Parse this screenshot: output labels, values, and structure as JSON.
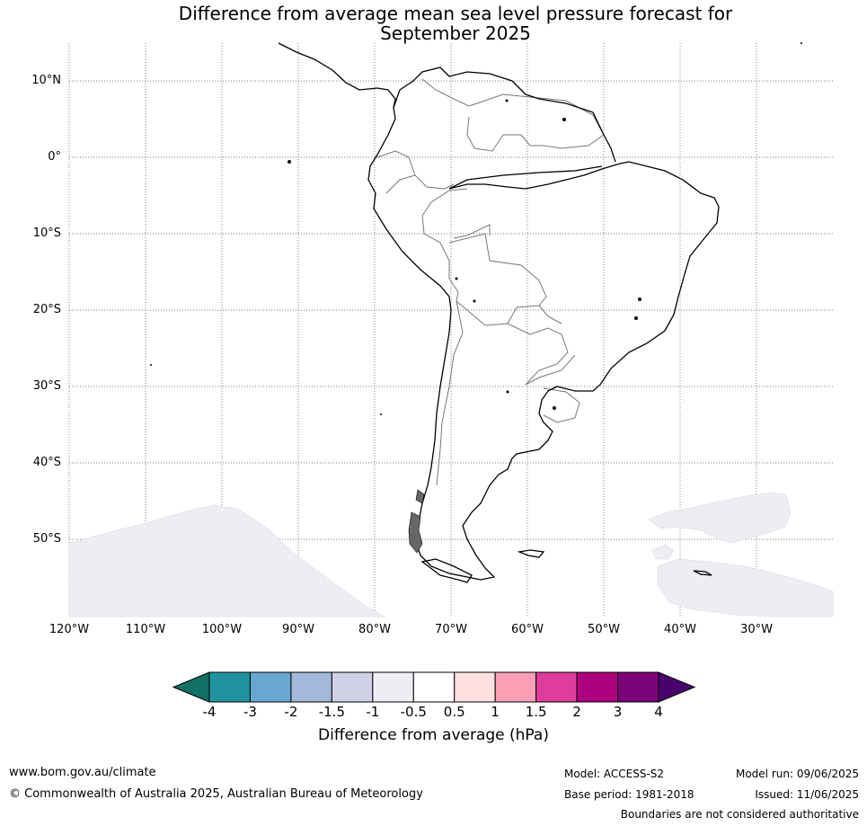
{
  "title_line1": "Difference from average mean sea level pressure forecast for",
  "title_line2": "September 2025",
  "lat_labels": [
    "10°N",
    "0°",
    "10°S",
    "20°S",
    "30°S",
    "40°S",
    "50°S"
  ],
  "lon_labels": [
    "120°W",
    "110°W",
    "100°W",
    "90°W",
    "80°W",
    "70°W",
    "60°W",
    "50°W",
    "40°W",
    "30°W"
  ],
  "colorbar": {
    "ticks": [
      "-4",
      "-3",
      "-2",
      "-1.5",
      "-1",
      "-0.5",
      "0.5",
      "1",
      "1.5",
      "2",
      "3",
      "4"
    ],
    "colors": [
      "#0f7063",
      "#1f939e",
      "#68a8d0",
      "#a4b9da",
      "#d0d1e6",
      "#efecf3",
      "#ffffff",
      "#fee0e0",
      "#fa9fb5",
      "#df3d9c",
      "#ae017e",
      "#7a0177",
      "#49006a"
    ],
    "label": "Difference from average (hPa)"
  },
  "anomaly_fill": "#efecf3",
  "footer": {
    "url": "www.bom.gov.au/climate",
    "copyright": "© Commonwealth of Australia 2025, Australian Bureau of Meteorology",
    "model": "Model: ACCESS-S2",
    "base_period": "Base period: 1981-2018",
    "model_run": "Model run: 09/06/2025",
    "issued": "Issued: 11/06/2025",
    "disclaimer": "Boundaries are not considered authoritative"
  }
}
